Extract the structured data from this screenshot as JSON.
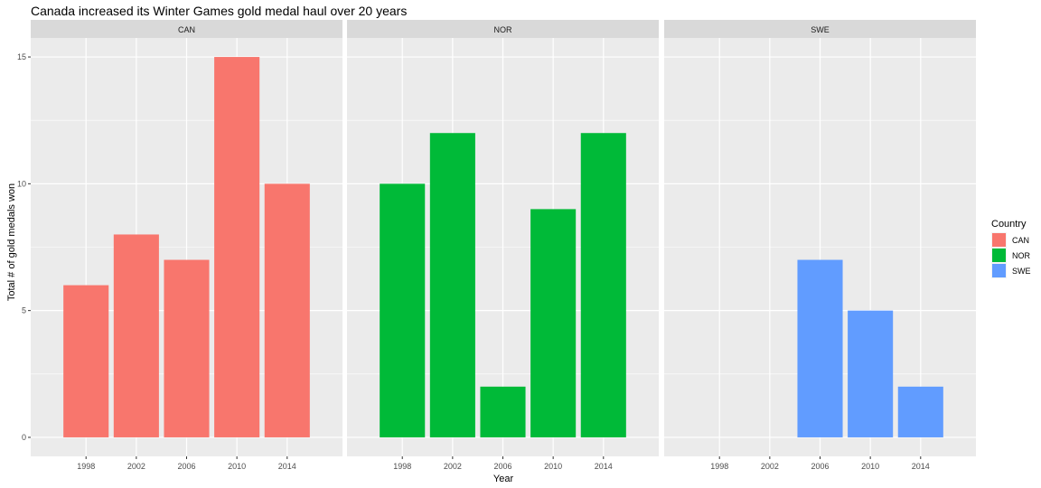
{
  "chart_data": {
    "type": "bar",
    "title": "Canada increased its Winter Games gold medal haul over 20 years",
    "xlabel": "Year",
    "ylabel": "Total # of gold medals won",
    "ylim": [
      -0.75,
      15.75
    ],
    "yticks": [
      0,
      5,
      10,
      15
    ],
    "categories": [
      "1998",
      "2002",
      "2006",
      "2010",
      "2014"
    ],
    "grid": true,
    "legend": {
      "title": "Country",
      "position": "right"
    },
    "facets": [
      {
        "name": "CAN",
        "color": "#F8766D",
        "values": [
          6,
          8,
          7,
          15,
          10
        ]
      },
      {
        "name": "NOR",
        "color": "#00BA38",
        "values": [
          10,
          12,
          2,
          9,
          12
        ]
      },
      {
        "name": "SWE",
        "color": "#619CFF",
        "values": [
          null,
          null,
          7,
          5,
          2
        ]
      }
    ]
  }
}
